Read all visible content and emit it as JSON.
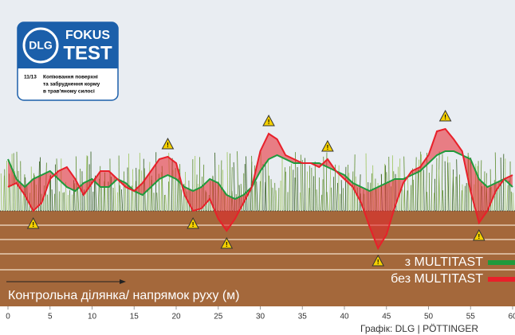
{
  "chart_data": {
    "type": "line",
    "x": [
      0,
      1,
      2,
      3,
      4,
      5,
      6,
      7,
      8,
      9,
      10,
      11,
      12,
      13,
      14,
      15,
      16,
      17,
      18,
      19,
      20,
      21,
      22,
      23,
      24,
      25,
      26,
      27,
      28,
      29,
      30,
      31,
      32,
      33,
      34,
      35,
      36,
      37,
      38,
      39,
      40,
      41,
      42,
      43,
      44,
      45,
      46,
      47,
      48,
      49,
      50,
      51,
      52,
      53,
      54,
      55,
      56,
      57,
      58,
      59,
      60
    ],
    "series": [
      {
        "name": "з MULTITAST",
        "color": "#1f9a3c",
        "values": [
          6.5,
          4,
          3,
          4,
          4.5,
          5,
          4,
          3,
          2.5,
          3.5,
          4,
          3,
          3,
          4,
          3.5,
          2.5,
          2,
          3,
          4,
          4.5,
          4,
          3,
          2.5,
          3,
          4,
          3.5,
          2,
          1.5,
          2,
          3,
          5,
          6.5,
          7,
          6.5,
          6,
          6,
          6,
          6,
          5.5,
          5,
          4.5,
          3.5,
          3,
          2.5,
          3,
          3.5,
          4,
          4,
          4.5,
          5,
          6,
          7,
          7.5,
          7.5,
          7,
          6.5,
          4,
          3,
          3.5,
          4,
          3
        ]
      },
      {
        "name": "без MULTITAST",
        "color": "#e8202a",
        "values": [
          3,
          3.5,
          2,
          0,
          1,
          4,
          5,
          5.5,
          4,
          2,
          3.5,
          5,
          5,
          4,
          3,
          2.5,
          3.5,
          5,
          6.5,
          6.8,
          6,
          2,
          0,
          0.3,
          1.5,
          -1,
          -2.5,
          -1,
          1,
          3,
          7.5,
          9.7,
          9,
          7,
          6.5,
          6,
          6,
          5.5,
          6.5,
          5,
          4,
          3,
          1,
          -2,
          -4.7,
          -3,
          0.5,
          3.5,
          5,
          5.5,
          7,
          10,
          10.3,
          9,
          7.5,
          2.5,
          -1.5,
          0,
          2.5,
          4,
          4.5
        ]
      }
    ],
    "xlim": [
      0,
      60
    ],
    "xticks": [
      0,
      5,
      10,
      15,
      20,
      25,
      30,
      35,
      40,
      45,
      50,
      55,
      60
    ],
    "ylim": [
      -6,
      12
    ],
    "xlabel": "Контрольна ділянка/ напрямок руху (м)",
    "source": "Графік: DLG | PÖTTINGER"
  },
  "logo": {
    "brand": "DLG",
    "line1": "FOKUS",
    "line2": "TEST",
    "issue": "11/13",
    "caption": [
      "Копіювання поверхні",
      "та забруднення корму",
      "в трав'яному силосі"
    ]
  }
}
